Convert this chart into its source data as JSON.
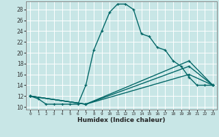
{
  "xlabel": "Humidex (Indice chaleur)",
  "background_color": "#c8e6e6",
  "grid_color": "#ffffff",
  "line_color": "#006666",
  "xlim": [
    -0.5,
    23.5
  ],
  "ylim": [
    9.5,
    29.5
  ],
  "xticks": [
    0,
    1,
    2,
    3,
    4,
    5,
    6,
    7,
    8,
    9,
    10,
    11,
    12,
    13,
    14,
    15,
    16,
    17,
    18,
    19,
    20,
    21,
    22,
    23
  ],
  "yticks": [
    10,
    12,
    14,
    16,
    18,
    20,
    22,
    24,
    26,
    28
  ],
  "series": [
    {
      "x": [
        0,
        1,
        2,
        3,
        4,
        5,
        6,
        7,
        8,
        9,
        10,
        11,
        12,
        13,
        14,
        15,
        16,
        17,
        18,
        19,
        20,
        21,
        22,
        23
      ],
      "y": [
        12,
        11.5,
        10.5,
        10.5,
        10.5,
        10.5,
        10.5,
        14,
        20.5,
        24,
        27.5,
        29,
        29,
        28,
        23.5,
        23,
        21,
        20.5,
        18.5,
        17.5,
        15.5,
        14,
        14,
        14
      ]
    },
    {
      "x": [
        0,
        7,
        20,
        23
      ],
      "y": [
        12,
        10.5,
        18.5,
        14
      ]
    },
    {
      "x": [
        0,
        7,
        20,
        23
      ],
      "y": [
        12,
        10.5,
        17.5,
        14
      ]
    },
    {
      "x": [
        0,
        7,
        20,
        23
      ],
      "y": [
        12,
        10.5,
        16,
        14
      ]
    }
  ]
}
